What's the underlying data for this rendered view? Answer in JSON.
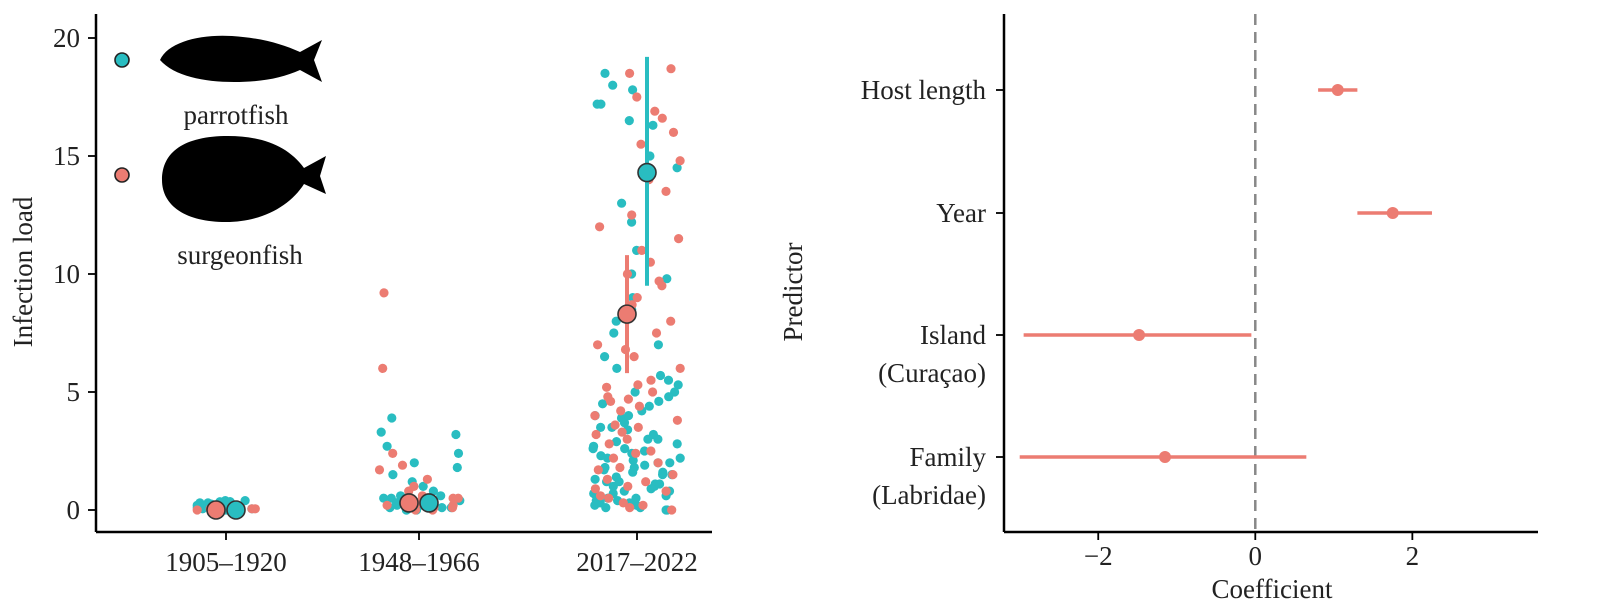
{
  "colors": {
    "parrotfish": "#29BDC1",
    "surgeonfish": "#EC7C72",
    "ink": "#222222",
    "zero_line": "#888888"
  },
  "chart_data": [
    {
      "type": "scatter",
      "title": "",
      "xlabel": "",
      "ylabel": "Infection load",
      "ylim": [
        0,
        20
      ],
      "yticks": [
        0,
        5,
        10,
        15,
        20
      ],
      "categories": [
        "1905–1920",
        "1948–1966",
        "2017–2022"
      ],
      "grid": false,
      "legend_position": "top-left",
      "series": [
        {
          "name": "parrotfish",
          "color_key": "parrotfish",
          "icon": "parrotfish-silhouette-icon",
          "means": [
            0.0,
            0.3,
            14.3
          ],
          "intervals": [
            [
              0.0,
              0.0
            ],
            [
              0.1,
              0.5
            ],
            [
              9.5,
              19.2
            ]
          ],
          "points": [
            [
              0,
              0.4
            ],
            [
              0,
              0.35
            ],
            [
              0,
              0.3
            ],
            [
              0,
              0.25
            ],
            [
              0,
              0.2
            ],
            [
              0,
              0.15
            ],
            [
              0,
              0.1
            ],
            [
              0,
              0.05
            ],
            [
              0,
              0.0
            ],
            [
              0,
              0.35
            ],
            [
              0,
              0.25
            ],
            [
              0,
              0.4
            ],
            [
              0,
              0.1
            ],
            [
              0,
              0.2
            ],
            [
              0,
              0.0
            ],
            [
              0,
              0.3
            ],
            [
              0,
              0.15
            ],
            [
              0,
              0.05
            ],
            [
              0,
              0.35
            ],
            [
              0,
              0.2
            ],
            [
              1,
              3.9
            ],
            [
              1,
              3.3
            ],
            [
              1,
              3.2
            ],
            [
              1,
              2.4
            ],
            [
              1,
              2.7
            ],
            [
              1,
              2.0
            ],
            [
              1,
              1.8
            ],
            [
              1,
              1.5
            ],
            [
              1,
              1.2
            ],
            [
              1,
              1.0
            ],
            [
              1,
              0.8
            ],
            [
              1,
              0.6
            ],
            [
              1,
              0.5
            ],
            [
              1,
              0.4
            ],
            [
              1,
              0.3
            ],
            [
              1,
              0.3
            ],
            [
              1,
              0.2
            ],
            [
              1,
              0.2
            ],
            [
              1,
              0.1
            ],
            [
              1,
              0.1
            ],
            [
              1,
              0.0
            ],
            [
              1,
              0.0
            ],
            [
              1,
              0.5
            ],
            [
              1,
              0.4
            ],
            [
              1,
              0.2
            ],
            [
              1,
              0.1
            ],
            [
              1,
              0.0
            ],
            [
              1,
              0.3
            ],
            [
              1,
              0.15
            ],
            [
              1,
              0.25
            ],
            [
              1,
              0.6
            ],
            [
              1,
              0.05
            ],
            [
              2,
              18.5
            ],
            [
              2,
              18.0
            ],
            [
              2,
              17.8
            ],
            [
              2,
              17.2
            ],
            [
              2,
              17.2
            ],
            [
              2,
              16.5
            ],
            [
              2,
              16.3
            ],
            [
              2,
              15.0
            ],
            [
              2,
              14.5
            ],
            [
              2,
              13.0
            ],
            [
              2,
              12.2
            ],
            [
              2,
              11.0
            ],
            [
              2,
              10.0
            ],
            [
              2,
              9.8
            ],
            [
              2,
              9.0
            ],
            [
              2,
              8.5
            ],
            [
              2,
              8.0
            ],
            [
              2,
              7.5
            ],
            [
              2,
              7.0
            ],
            [
              2,
              6.5
            ],
            [
              2,
              6.0
            ],
            [
              2,
              5.7
            ],
            [
              2,
              5.5
            ],
            [
              2,
              5.3
            ],
            [
              2,
              5.0
            ],
            [
              2,
              4.8
            ],
            [
              2,
              4.6
            ],
            [
              2,
              4.4
            ],
            [
              2,
              4.2
            ],
            [
              2,
              4.0
            ],
            [
              2,
              3.9
            ],
            [
              2,
              3.7
            ],
            [
              2,
              3.5
            ],
            [
              2,
              3.4
            ],
            [
              2,
              3.2
            ],
            [
              2,
              3.0
            ],
            [
              2,
              2.9
            ],
            [
              2,
              2.8
            ],
            [
              2,
              2.7
            ],
            [
              2,
              2.6
            ],
            [
              2,
              2.5
            ],
            [
              2,
              2.4
            ],
            [
              2,
              2.3
            ],
            [
              2,
              2.2
            ],
            [
              2,
              2.1
            ],
            [
              2,
              2.0
            ],
            [
              2,
              1.9
            ],
            [
              2,
              1.8
            ],
            [
              2,
              1.7
            ],
            [
              2,
              1.6
            ],
            [
              2,
              1.5
            ],
            [
              2,
              1.4
            ],
            [
              2,
              1.3
            ],
            [
              2,
              1.2
            ],
            [
              2,
              1.1
            ],
            [
              2,
              1.0
            ],
            [
              2,
              0.9
            ],
            [
              2,
              0.8
            ],
            [
              2,
              0.7
            ],
            [
              2,
              0.6
            ],
            [
              2,
              0.5
            ],
            [
              2,
              0.4
            ],
            [
              2,
              0.3
            ],
            [
              2,
              0.2
            ],
            [
              2,
              0.1
            ],
            [
              2,
              0.0
            ],
            [
              2,
              0.0
            ],
            [
              2,
              0.1
            ],
            [
              2,
              0.2
            ],
            [
              2,
              0.3
            ],
            [
              2,
              0.4
            ],
            [
              2,
              0.5
            ],
            [
              2,
              0.6
            ],
            [
              2,
              0.8
            ],
            [
              2,
              1.0
            ],
            [
              2,
              1.2
            ],
            [
              2,
              1.5
            ],
            [
              2,
              1.8
            ],
            [
              2,
              2.2
            ],
            [
              2,
              2.6
            ],
            [
              2,
              3.0
            ],
            [
              2,
              3.5
            ],
            [
              2,
              4.0
            ],
            [
              2,
              4.5
            ],
            [
              2,
              5.0
            ],
            [
              2,
              0.3
            ],
            [
              2,
              0.7
            ],
            [
              2,
              1.1
            ],
            [
              2,
              1.6
            ],
            [
              2,
              2.0
            ]
          ]
        },
        {
          "name": "surgeonfish",
          "color_key": "surgeonfish",
          "icon": "surgeonfish-silhouette-icon",
          "means": [
            0.0,
            0.3,
            8.3
          ],
          "intervals": [
            [
              0.0,
              0.0
            ],
            [
              0.1,
              0.5
            ],
            [
              5.8,
              10.8
            ]
          ],
          "points": [
            [
              0,
              0.0
            ],
            [
              0,
              0.05
            ],
            [
              0,
              0.1
            ],
            [
              0,
              0.0
            ],
            [
              0,
              0.05
            ],
            [
              0,
              0.1
            ],
            [
              0,
              0.0
            ],
            [
              0,
              0.05
            ],
            [
              1,
              9.2
            ],
            [
              1,
              6.0
            ],
            [
              1,
              2.4
            ],
            [
              1,
              1.9
            ],
            [
              1,
              1.7
            ],
            [
              1,
              1.3
            ],
            [
              1,
              1.0
            ],
            [
              1,
              0.8
            ],
            [
              1,
              0.6
            ],
            [
              1,
              0.5
            ],
            [
              1,
              0.4
            ],
            [
              1,
              0.3
            ],
            [
              1,
              0.2
            ],
            [
              1,
              0.1
            ],
            [
              1,
              0.0
            ],
            [
              1,
              0.3
            ],
            [
              1,
              0.2
            ],
            [
              1,
              0.1
            ],
            [
              1,
              0.0
            ],
            [
              1,
              0.5
            ],
            [
              2,
              18.7
            ],
            [
              2,
              18.5
            ],
            [
              2,
              17.5
            ],
            [
              2,
              16.9
            ],
            [
              2,
              16.6
            ],
            [
              2,
              16.0
            ],
            [
              2,
              15.5
            ],
            [
              2,
              14.8
            ],
            [
              2,
              14.0
            ],
            [
              2,
              13.5
            ],
            [
              2,
              12.5
            ],
            [
              2,
              12.0
            ],
            [
              2,
              11.5
            ],
            [
              2,
              11.0
            ],
            [
              2,
              10.5
            ],
            [
              2,
              10.0
            ],
            [
              2,
              9.7
            ],
            [
              2,
              9.5
            ],
            [
              2,
              9.0
            ],
            [
              2,
              8.7
            ],
            [
              2,
              8.0
            ],
            [
              2,
              7.5
            ],
            [
              2,
              7.0
            ],
            [
              2,
              6.8
            ],
            [
              2,
              6.5
            ],
            [
              2,
              6.0
            ],
            [
              2,
              5.5
            ],
            [
              2,
              5.2
            ],
            [
              2,
              5.0
            ],
            [
              2,
              4.8
            ],
            [
              2,
              4.6
            ],
            [
              2,
              4.4
            ],
            [
              2,
              4.2
            ],
            [
              2,
              4.0
            ],
            [
              2,
              3.8
            ],
            [
              2,
              3.5
            ],
            [
              2,
              3.2
            ],
            [
              2,
              3.0
            ],
            [
              2,
              2.8
            ],
            [
              2,
              2.5
            ],
            [
              2,
              2.2
            ],
            [
              2,
              2.0
            ],
            [
              2,
              1.8
            ],
            [
              2,
              1.5
            ],
            [
              2,
              1.2
            ],
            [
              2,
              1.0
            ],
            [
              2,
              0.8
            ],
            [
              2,
              0.5
            ],
            [
              2,
              0.3
            ],
            [
              2,
              0.1
            ],
            [
              2,
              0.0
            ],
            [
              2,
              0.2
            ],
            [
              2,
              0.6
            ],
            [
              2,
              1.3
            ],
            [
              2,
              2.4
            ],
            [
              2,
              3.6
            ],
            [
              2,
              4.7
            ],
            [
              2,
              5.3
            ],
            [
              2,
              3.3
            ],
            [
              2,
              0.9
            ],
            [
              2,
              1.7
            ]
          ]
        }
      ]
    },
    {
      "type": "scatter",
      "title": "",
      "xlabel": "Coefficient",
      "ylabel": "Predictor",
      "xlim": [
        -3.2,
        3.6
      ],
      "xticks": [
        -2,
        0,
        2
      ],
      "xtick_labels": [
        "−2",
        "0",
        "2"
      ],
      "reference_line": 0,
      "grid": false,
      "series": [
        {
          "color_key": "surgeonfish",
          "predictors": [
            {
              "lines": [
                "Host length"
              ],
              "estimate": 1.05,
              "lower": 0.8,
              "upper": 1.3
            },
            {
              "lines": [
                "Year"
              ],
              "estimate": 1.75,
              "lower": 1.3,
              "upper": 2.25
            },
            {
              "lines": [
                "Island",
                "(Curaçao)"
              ],
              "estimate": -1.48,
              "lower": -2.95,
              "upper": -0.05
            },
            {
              "lines": [
                "Family",
                "(Labridae)"
              ],
              "estimate": -1.15,
              "lower": -3.0,
              "upper": 0.65
            }
          ]
        }
      ]
    }
  ]
}
